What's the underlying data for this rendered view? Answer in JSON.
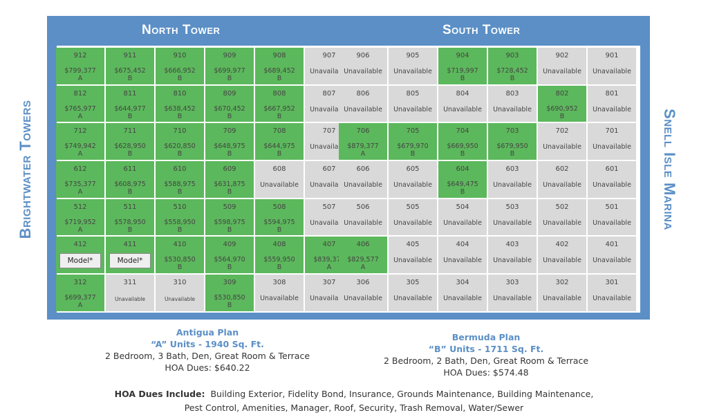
{
  "north_title": "North Tower",
  "south_title": "South Tower",
  "left_side": "Brightwater Towers",
  "right_side": "Snell Isle Marina",
  "unavailable": "Unavailable",
  "model": "Model*",
  "north": [
    [
      [
        "912",
        "$799,377",
        "A"
      ],
      [
        "911",
        "$675,452",
        "B"
      ],
      [
        "910",
        "$666,952",
        "B"
      ],
      [
        "909",
        "$699,977",
        "B"
      ],
      [
        "908",
        "$689,452",
        "B"
      ],
      [
        "907",
        "U"
      ]
    ],
    [
      [
        "812",
        "$765,977",
        "A"
      ],
      [
        "811",
        "$644,977",
        "B"
      ],
      [
        "810",
        "$638,452",
        "B"
      ],
      [
        "809",
        "$670,452",
        "B"
      ],
      [
        "808",
        "$667,952",
        "B"
      ],
      [
        "807",
        "U"
      ]
    ],
    [
      [
        "712",
        "$749,942",
        "A"
      ],
      [
        "711",
        "$628,950",
        "B"
      ],
      [
        "710",
        "$620,850",
        "B"
      ],
      [
        "709",
        "$648,975",
        "B"
      ],
      [
        "708",
        "$644,975",
        "B"
      ],
      [
        "707",
        "U"
      ]
    ],
    [
      [
        "612",
        "$735,377",
        "A"
      ],
      [
        "611",
        "$608,975",
        "B"
      ],
      [
        "610",
        "$588,975",
        "B"
      ],
      [
        "609",
        "$631,875",
        "B"
      ],
      [
        "608",
        "U"
      ],
      [
        "607",
        "U"
      ]
    ],
    [
      [
        "512",
        "$719,952",
        "A"
      ],
      [
        "511",
        "$578,950",
        "B"
      ],
      [
        "510",
        "$558,950",
        "B"
      ],
      [
        "509",
        "$598,975",
        "B"
      ],
      [
        "508",
        "$594,975",
        "B"
      ],
      [
        "507",
        "U"
      ]
    ],
    [
      [
        "412",
        "M"
      ],
      [
        "411",
        "M"
      ],
      [
        "410",
        "$530,850",
        "B"
      ],
      [
        "409",
        "$564,970",
        "B"
      ],
      [
        "408",
        "$559,950",
        "B"
      ],
      [
        "407",
        "$839,377",
        "A"
      ]
    ],
    [
      [
        "312",
        "$699,377",
        "A"
      ],
      [
        "311",
        "US"
      ],
      [
        "310",
        "US"
      ],
      [
        "309",
        "$530,850",
        "B"
      ],
      [
        "308",
        "U"
      ],
      [
        "307",
        "U"
      ]
    ]
  ],
  "south": [
    [
      [
        "906",
        "U"
      ],
      [
        "905",
        "U"
      ],
      [
        "904",
        "$719,997",
        "B"
      ],
      [
        "903",
        "$728,452",
        "B"
      ],
      [
        "902",
        "U"
      ],
      [
        "901",
        "U"
      ]
    ],
    [
      [
        "806",
        "U"
      ],
      [
        "805",
        "U"
      ],
      [
        "804",
        "U"
      ],
      [
        "803",
        "U"
      ],
      [
        "802",
        "$690,952",
        "B"
      ],
      [
        "801",
        "U"
      ]
    ],
    [
      [
        "706",
        "$879,377",
        "A"
      ],
      [
        "705",
        "$679,970",
        "B"
      ],
      [
        "704",
        "$669,950",
        "B"
      ],
      [
        "703",
        "$679,950",
        "B"
      ],
      [
        "702",
        "U"
      ],
      [
        "701",
        "U"
      ]
    ],
    [
      [
        "606",
        "U"
      ],
      [
        "605",
        "U"
      ],
      [
        "604",
        "$649,475",
        "B"
      ],
      [
        "603",
        "U"
      ],
      [
        "602",
        "U"
      ],
      [
        "601",
        "U"
      ]
    ],
    [
      [
        "506",
        "U"
      ],
      [
        "505",
        "U"
      ],
      [
        "504",
        "U"
      ],
      [
        "503",
        "U"
      ],
      [
        "502",
        "U"
      ],
      [
        "501",
        "U"
      ]
    ],
    [
      [
        "406",
        "$829,577",
        "A"
      ],
      [
        "405",
        "U"
      ],
      [
        "404",
        "U"
      ],
      [
        "403",
        "U"
      ],
      [
        "402",
        "U"
      ],
      [
        "401",
        "U"
      ]
    ],
    [
      [
        "306",
        "U"
      ],
      [
        "305",
        "U"
      ],
      [
        "304",
        "U"
      ],
      [
        "303",
        "U"
      ],
      [
        "302",
        "U"
      ],
      [
        "301",
        "U"
      ]
    ]
  ],
  "legend_a": {
    "title": "Antigua Plan",
    "units": "“A” Units - 1940 Sq. Ft.",
    "rooms": "2 Bedroom, 3 Bath, Den, Great Room & Terrace",
    "hoa": "HOA Dues: $640.22"
  },
  "legend_b": {
    "title": "Bermuda Plan",
    "units": "“B” Units - 1711 Sq. Ft.",
    "rooms": "2 Bedroom, 2 Bath, Den, Great Room & Terrace",
    "hoa": "HOA Dues: $574.48"
  },
  "hoa_label": "HOA Dues Include:",
  "hoa_line1": "Building Exterior, Fidelity Bond, Insurance, Grounds Maintenance, Building Maintenance,",
  "hoa_line2": "Pest Control, Amenities, Manager, Roof, Security, Trash Removal, Water/Sewer"
}
